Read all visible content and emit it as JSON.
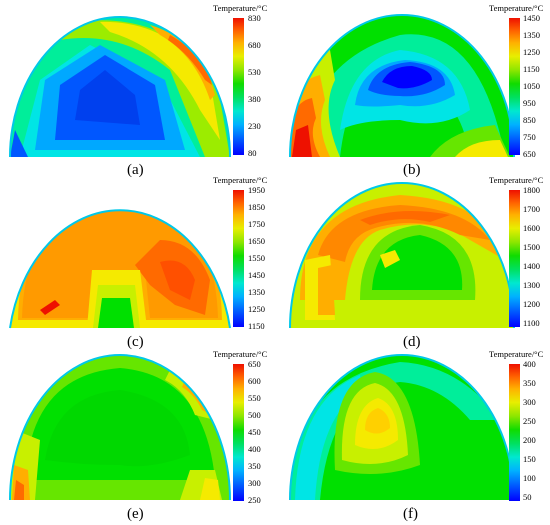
{
  "colors": {
    "colormap": [
      "#0000ff",
      "#0057ff",
      "#00a8ff",
      "#00e5e5",
      "#00ee9a",
      "#00e000",
      "#66e600",
      "#c8f000",
      "#f5ea00",
      "#ffae00",
      "#ff6a00",
      "#ee1100"
    ]
  },
  "panels": [
    {
      "label": "(a)",
      "colorbar": {
        "title": "Temperature/°C",
        "ticks": [
          "830",
          "680",
          "530",
          "380",
          "230",
          "80"
        ]
      }
    },
    {
      "label": "(b)",
      "colorbar": {
        "title": "Temperature/°C",
        "ticks": [
          "1450",
          "1350",
          "1250",
          "1150",
          "1050",
          "950",
          "850",
          "750",
          "650"
        ]
      }
    },
    {
      "label": "(c)",
      "colorbar": {
        "title": "Temperature/°C",
        "ticks": [
          "1950",
          "1850",
          "1750",
          "1650",
          "1550",
          "1450",
          "1350",
          "1250",
          "1150"
        ]
      }
    },
    {
      "label": "(d)",
      "colorbar": {
        "title": "Temperature/°C",
        "ticks": [
          "1800",
          "1700",
          "1600",
          "1500",
          "1400",
          "1300",
          "1200",
          "1100"
        ]
      }
    },
    {
      "label": "(e)",
      "colorbar": {
        "title": "Temperature/°C",
        "ticks": [
          "650",
          "600",
          "550",
          "500",
          "450",
          "400",
          "350",
          "300",
          "250"
        ]
      }
    },
    {
      "label": "(f)",
      "colorbar": {
        "title": "Temperature/°C",
        "ticks": [
          "400",
          "350",
          "300",
          "250",
          "200",
          "150",
          "100",
          "50"
        ]
      }
    }
  ]
}
